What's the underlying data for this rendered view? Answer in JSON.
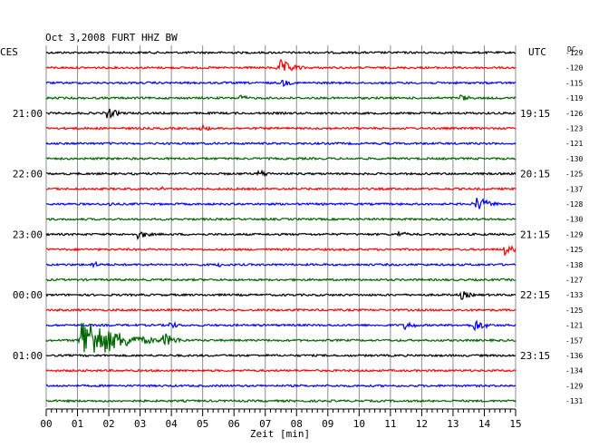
{
  "chart_data": {
    "type": "line",
    "title": "Oct 3,2008   FURT HHZ BW",
    "left_zone_label": "CES",
    "right_zone_label": "UTC",
    "dc_label": "DC",
    "xlabel": "Zeit [min]",
    "xlim": [
      0,
      15
    ],
    "x_ticks": [
      "00",
      "01",
      "02",
      "03",
      "04",
      "05",
      "06",
      "07",
      "08",
      "09",
      "10",
      "11",
      "12",
      "13",
      "14",
      "15"
    ],
    "trace_colors": [
      "#000000",
      "#ff0000",
      "#0000ff",
      "#006400"
    ],
    "left_time_labels": [
      {
        "row": 4,
        "text": "21:00"
      },
      {
        "row": 8,
        "text": "22:00"
      },
      {
        "row": 12,
        "text": "23:00"
      },
      {
        "row": 16,
        "text": "00:00"
      },
      {
        "row": 20,
        "text": "01:00"
      }
    ],
    "right_time_labels": [
      {
        "row": 4,
        "text": "19:15"
      },
      {
        "row": 8,
        "text": "20:15"
      },
      {
        "row": 12,
        "text": "21:15"
      },
      {
        "row": 16,
        "text": "22:15"
      },
      {
        "row": 20,
        "text": "23:15"
      }
    ],
    "dc_offsets": [
      -129,
      -120,
      -115,
      -119,
      -126,
      -123,
      -121,
      -130,
      -125,
      -137,
      -128,
      -130,
      -129,
      -125,
      -138,
      -127,
      -133,
      -125,
      -121,
      -157,
      -136,
      -134,
      -129,
      -131
    ],
    "events": [
      {
        "row": 1,
        "minute": 7.5,
        "amplitude": 9
      },
      {
        "row": 2,
        "minute": 7.6,
        "amplitude": 4
      },
      {
        "row": 3,
        "minute": 6.2,
        "amplitude": 4
      },
      {
        "row": 3,
        "minute": 13.3,
        "amplitude": 4
      },
      {
        "row": 4,
        "minute": 2.0,
        "amplitude": 6
      },
      {
        "row": 5,
        "minute": 5.0,
        "amplitude": 4
      },
      {
        "row": 8,
        "minute": 6.8,
        "amplitude": 5
      },
      {
        "row": 9,
        "minute": 3.7,
        "amplitude": 3
      },
      {
        "row": 10,
        "minute": 13.8,
        "amplitude": 8
      },
      {
        "row": 10,
        "minute": 2.0,
        "amplitude": 3
      },
      {
        "row": 12,
        "minute": 3.0,
        "amplitude": 5
      },
      {
        "row": 12,
        "minute": 11.3,
        "amplitude": 4
      },
      {
        "row": 13,
        "minute": 14.7,
        "amplitude": 6
      },
      {
        "row": 14,
        "minute": 1.5,
        "amplitude": 4
      },
      {
        "row": 14,
        "minute": 5.5,
        "amplitude": 3
      },
      {
        "row": 16,
        "minute": 13.3,
        "amplitude": 5
      },
      {
        "row": 18,
        "minute": 11.5,
        "amplitude": 5
      },
      {
        "row": 18,
        "minute": 13.7,
        "amplitude": 7
      },
      {
        "row": 18,
        "minute": 4.0,
        "amplitude": 4
      },
      {
        "row": 19,
        "minute": 1.2,
        "amplitude": 28
      },
      {
        "row": 19,
        "minute": 3.8,
        "amplitude": 8
      }
    ]
  }
}
